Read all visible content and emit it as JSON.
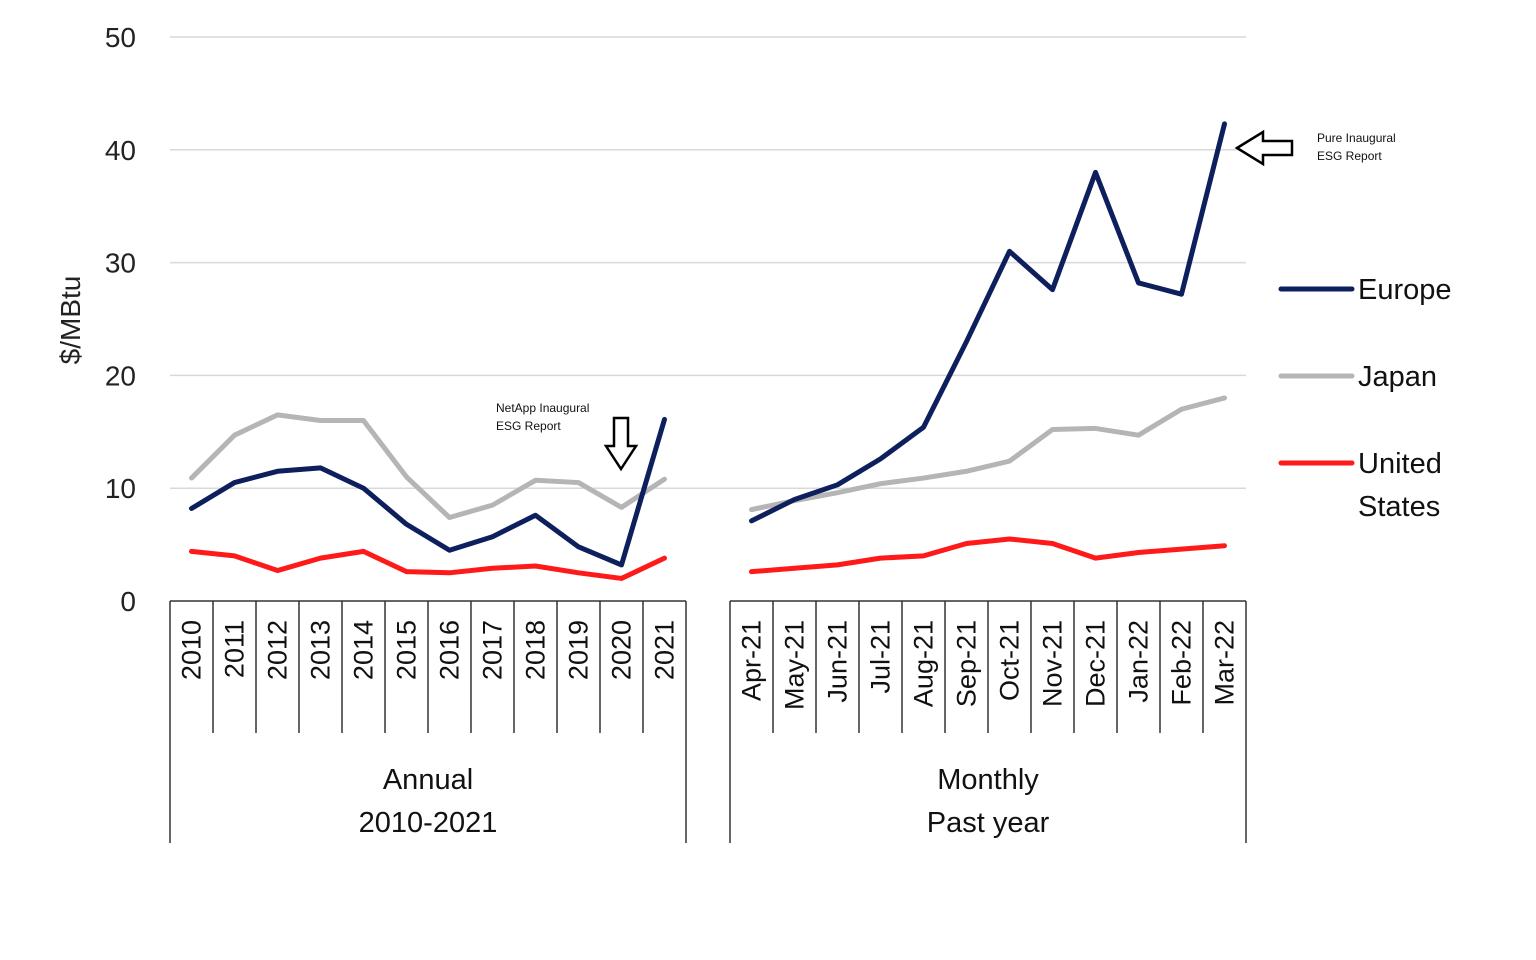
{
  "chart_data": {
    "type": "line",
    "ylabel": "$/MBtu",
    "ylim": [
      0,
      50
    ],
    "yticks": [
      0,
      10,
      20,
      30,
      40,
      50
    ],
    "grid": true,
    "legend_position": "right",
    "groups": [
      {
        "label_lines": [
          "Annual",
          "2010-2021"
        ],
        "categories": [
          "2010",
          "2011",
          "2012",
          "2013",
          "2014",
          "2015",
          "2016",
          "2017",
          "2018",
          "2019",
          "2020",
          "2021"
        ]
      },
      {
        "label_lines": [
          "Monthly",
          "Past year"
        ],
        "categories": [
          "Apr-21",
          "May-21",
          "Jun-21",
          "Jul-21",
          "Aug-21",
          "Sep-21",
          "Oct-21",
          "Nov-21",
          "Dec-21",
          "Jan-22",
          "Feb-22",
          "Mar-22"
        ]
      }
    ],
    "series": [
      {
        "name": "Europe",
        "name_lines": [
          "Europe"
        ],
        "color": "#0d1f5c",
        "annual": [
          8.2,
          10.5,
          11.5,
          11.8,
          10.0,
          6.8,
          4.5,
          5.7,
          7.6,
          4.8,
          3.2,
          16.1
        ],
        "monthly": [
          7.1,
          9.0,
          10.3,
          12.6,
          15.4,
          23.0,
          31.0,
          27.6,
          38.0,
          28.2,
          27.2,
          42.3
        ]
      },
      {
        "name": "Japan",
        "name_lines": [
          "Japan"
        ],
        "color": "#b5b5b5",
        "annual": [
          10.9,
          14.7,
          16.5,
          16.0,
          16.0,
          11.0,
          7.4,
          8.5,
          10.7,
          10.5,
          8.3,
          10.8
        ],
        "monthly": [
          8.1,
          8.9,
          9.6,
          10.4,
          10.9,
          11.5,
          12.4,
          15.2,
          15.3,
          14.7,
          17.0,
          18.0
        ]
      },
      {
        "name": "United States",
        "name_lines": [
          "United",
          "States"
        ],
        "color": "#ff1a1a",
        "annual": [
          4.4,
          4.0,
          2.7,
          3.8,
          4.4,
          2.6,
          2.5,
          2.9,
          3.1,
          2.5,
          2.0,
          3.8
        ],
        "monthly": [
          2.6,
          2.9,
          3.2,
          3.8,
          4.0,
          5.1,
          5.5,
          5.1,
          3.8,
          4.3,
          4.6,
          4.9
        ]
      }
    ],
    "annotations": [
      {
        "lines": [
          "NetApp Inaugural",
          "ESG Report"
        ],
        "points_to": {
          "series": "Europe",
          "category": "2020"
        },
        "arrow": "down"
      },
      {
        "lines": [
          "Pure Inaugural",
          "ESG Report"
        ],
        "points_to": {
          "series": "Europe",
          "category": "Mar-22"
        },
        "arrow": "left"
      }
    ]
  }
}
